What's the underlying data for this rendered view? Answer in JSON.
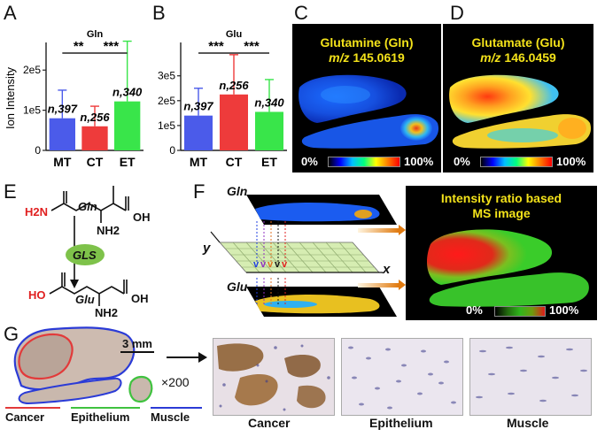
{
  "panels": {
    "A": "A",
    "B": "B",
    "C": "C",
    "D": "D",
    "E": "E",
    "F": "F",
    "G": "G"
  },
  "chart_data": [
    {
      "type": "bar",
      "title": "Gln",
      "ylabel": "Ion Intensity",
      "categories": [
        "MT",
        "CT",
        "ET"
      ],
      "values": [
        80000,
        60000,
        122000
      ],
      "errors": [
        70000,
        50000,
        150000
      ],
      "colors": [
        "#4b5bea",
        "#ee3b3b",
        "#39e54a"
      ],
      "annotations": [
        "n,397",
        "n,256",
        "n,340"
      ],
      "significance": [
        "**",
        "***"
      ],
      "yticks": [
        "0",
        "1e5",
        "2e5"
      ],
      "ylim": [
        0,
        260000
      ]
    },
    {
      "type": "bar",
      "title": "Glu",
      "ylabel": "",
      "categories": [
        "MT",
        "CT",
        "ET"
      ],
      "values": [
        140000,
        225000,
        155000
      ],
      "errors": [
        110000,
        160000,
        130000
      ],
      "colors": [
        "#4b5bea",
        "#ee3b3b",
        "#39e54a"
      ],
      "annotations": [
        "n,397",
        "n,256",
        "n,340"
      ],
      "significance": [
        "***",
        "***"
      ],
      "yticks": [
        "0",
        "1e5",
        "2e5",
        "3e5"
      ],
      "ylim": [
        0,
        420000
      ]
    }
  ],
  "panelC": {
    "title": "Glutamine (Gln)",
    "mz_label": "m/z",
    "mz_value": "145.0619",
    "scale_min": "0%",
    "scale_max": "100%"
  },
  "panelD": {
    "title": "Glutamate (Glu)",
    "mz_label": "m/z",
    "mz_value": "146.0459",
    "scale_min": "0%",
    "scale_max": "100%"
  },
  "panelE": {
    "top_label": "Gln",
    "bottom_label": "Glu",
    "enzyme": "GLS",
    "h2n": "H2N",
    "nh2_top": "NH2",
    "nh2_bottom": "NH2",
    "oh1": "OH",
    "oh2": "OH",
    "ho": "HO",
    "o": "O"
  },
  "panelF": {
    "gln": "Gln",
    "glu": "Glu",
    "axis_x": "x",
    "axis_y": "y",
    "ratio_title_1": "Intensity ratio based",
    "ratio_title_2": "MS image",
    "scale_min": "0%",
    "scale_max": "100%"
  },
  "panelG": {
    "scalebar": "3 mm",
    "mag": "×200",
    "legend": [
      "Cancer",
      "Epithelium",
      "Muscle"
    ],
    "legend_colors": [
      "#e23a3a",
      "#3fc23f",
      "#2b3bd6"
    ],
    "micro": [
      "Cancer",
      "Epithelium",
      "Muscle"
    ]
  }
}
